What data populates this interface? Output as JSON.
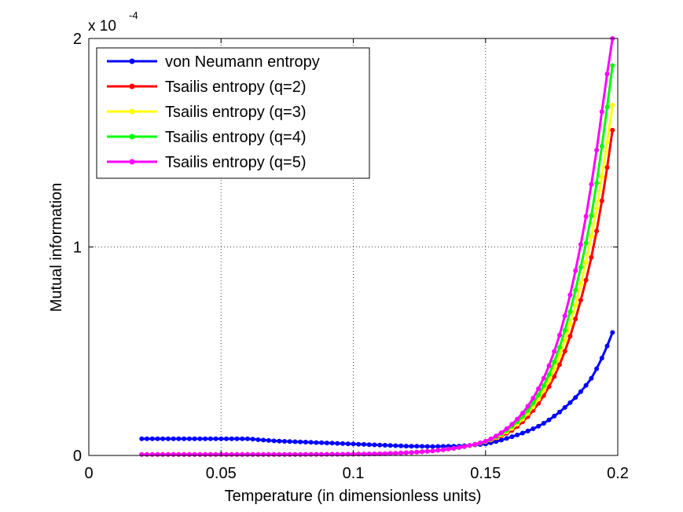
{
  "chart_data": {
    "type": "line",
    "xlabel": "Temperature (in dimensionless units)",
    "ylabel": "Mutual information",
    "y_scale_base": "x 10",
    "y_scale_exponent": "-4",
    "xlim": [
      0,
      0.2
    ],
    "ylim": [
      0,
      2
    ],
    "x_ticks": [
      0,
      0.05,
      0.1,
      0.15,
      0.2
    ],
    "x_tick_labels": [
      "0",
      "0.05",
      "0.1",
      "0.15",
      "0.2"
    ],
    "y_ticks": [
      0,
      1,
      2
    ],
    "y_tick_labels": [
      "0",
      "1",
      "2"
    ],
    "grid": true,
    "legend_position": "top-left",
    "series": [
      {
        "name": "von Neumann entropy",
        "color": "#0000ff",
        "x": [
          0.02,
          0.03,
          0.04,
          0.05,
          0.06,
          0.07,
          0.08,
          0.09,
          0.1,
          0.11,
          0.12,
          0.13,
          0.14,
          0.15,
          0.16,
          0.17,
          0.18,
          0.19,
          0.198
        ],
        "y": [
          0.08,
          0.08,
          0.08,
          0.08,
          0.08,
          0.07,
          0.065,
          0.06,
          0.055,
          0.05,
          0.045,
          0.043,
          0.045,
          0.055,
          0.09,
          0.14,
          0.23,
          0.37,
          0.59
        ]
      },
      {
        "name": "Tsailis entropy (q=2)",
        "color": "#ff0000",
        "x": [
          0.02,
          0.05,
          0.08,
          0.1,
          0.11,
          0.12,
          0.13,
          0.14,
          0.15,
          0.16,
          0.17,
          0.18,
          0.185,
          0.19,
          0.195,
          0.198
        ],
        "y": [
          0.005,
          0.005,
          0.005,
          0.006,
          0.008,
          0.013,
          0.022,
          0.038,
          0.065,
          0.12,
          0.25,
          0.5,
          0.7,
          0.95,
          1.3,
          1.56
        ]
      },
      {
        "name": "Tsailis entropy (q=3)",
        "color": "#ffff00",
        "x": [
          0.02,
          0.05,
          0.08,
          0.1,
          0.11,
          0.12,
          0.13,
          0.14,
          0.15,
          0.16,
          0.17,
          0.18,
          0.185,
          0.19,
          0.195,
          0.198
        ],
        "y": [
          0.005,
          0.005,
          0.005,
          0.006,
          0.008,
          0.013,
          0.022,
          0.038,
          0.066,
          0.13,
          0.27,
          0.55,
          0.77,
          1.05,
          1.42,
          1.68
        ]
      },
      {
        "name": "Tsailis entropy (q=4)",
        "color": "#00ff00",
        "x": [
          0.02,
          0.05,
          0.08,
          0.1,
          0.11,
          0.12,
          0.13,
          0.14,
          0.15,
          0.16,
          0.17,
          0.18,
          0.185,
          0.19,
          0.195,
          0.198
        ],
        "y": [
          0.005,
          0.005,
          0.005,
          0.006,
          0.008,
          0.013,
          0.022,
          0.038,
          0.067,
          0.14,
          0.29,
          0.6,
          0.85,
          1.15,
          1.58,
          1.87
        ]
      },
      {
        "name": "Tsailis entropy (q=5)",
        "color": "#ff00ff",
        "x": [
          0.02,
          0.05,
          0.08,
          0.1,
          0.11,
          0.12,
          0.13,
          0.14,
          0.15,
          0.16,
          0.17,
          0.18,
          0.185,
          0.19,
          0.195,
          0.198
        ],
        "y": [
          0.005,
          0.005,
          0.005,
          0.006,
          0.008,
          0.013,
          0.022,
          0.038,
          0.068,
          0.15,
          0.32,
          0.67,
          0.95,
          1.3,
          1.75,
          2.0
        ]
      }
    ]
  }
}
